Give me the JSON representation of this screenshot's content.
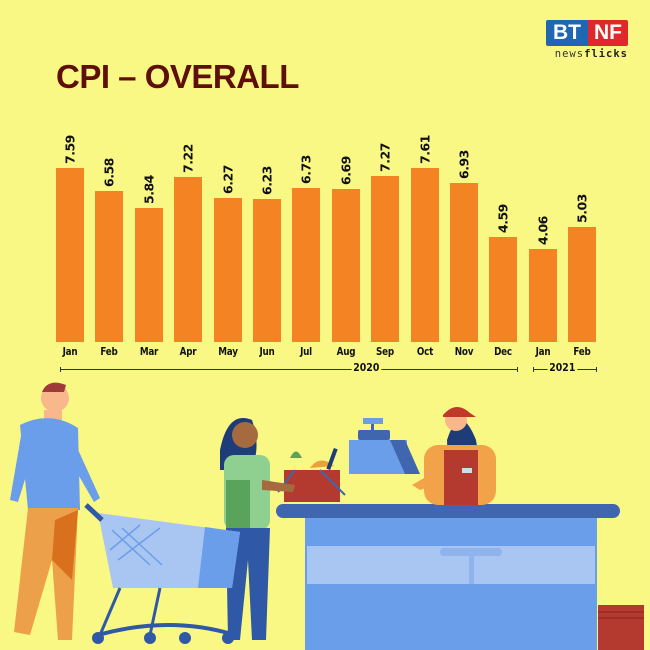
{
  "header": {
    "title": "CPI – OVERALL"
  },
  "logo": {
    "left": "BT",
    "right": "NF",
    "tagline_light": "news",
    "tagline_bold": "flicks",
    "colors": {
      "left": "#1F67B2",
      "right": "#E0282B"
    }
  },
  "colors": {
    "background": "#FAF884",
    "bar": "#F48423",
    "title": "#5E0F0C"
  },
  "chart_data": {
    "type": "bar",
    "title": "CPI – OVERALL",
    "xlabel": "",
    "ylabel": "",
    "categories": [
      "Jan",
      "Feb",
      "Mar",
      "Apr",
      "May",
      "Jun",
      "Jul",
      "Aug",
      "Sep",
      "Oct",
      "Nov",
      "Dec",
      "Jan",
      "Feb"
    ],
    "values": [
      7.59,
      6.58,
      5.84,
      7.22,
      6.27,
      6.23,
      6.73,
      6.69,
      7.27,
      7.61,
      6.93,
      4.59,
      4.06,
      5.03
    ],
    "value_labels": [
      "7.59",
      "6.58",
      "5.84",
      "7.22",
      "6.27",
      "6.23",
      "6.73",
      "6.69",
      "7.27",
      "7.61",
      "6.93",
      "4.59",
      "4.06",
      "5.03"
    ],
    "groups": [
      {
        "label": "2020",
        "from": 0,
        "to": 11
      },
      {
        "label": "2021",
        "from": 12,
        "to": 13
      }
    ],
    "grid": false,
    "legend": null,
    "data_labels": true,
    "ylim": [
      0,
      8
    ]
  }
}
